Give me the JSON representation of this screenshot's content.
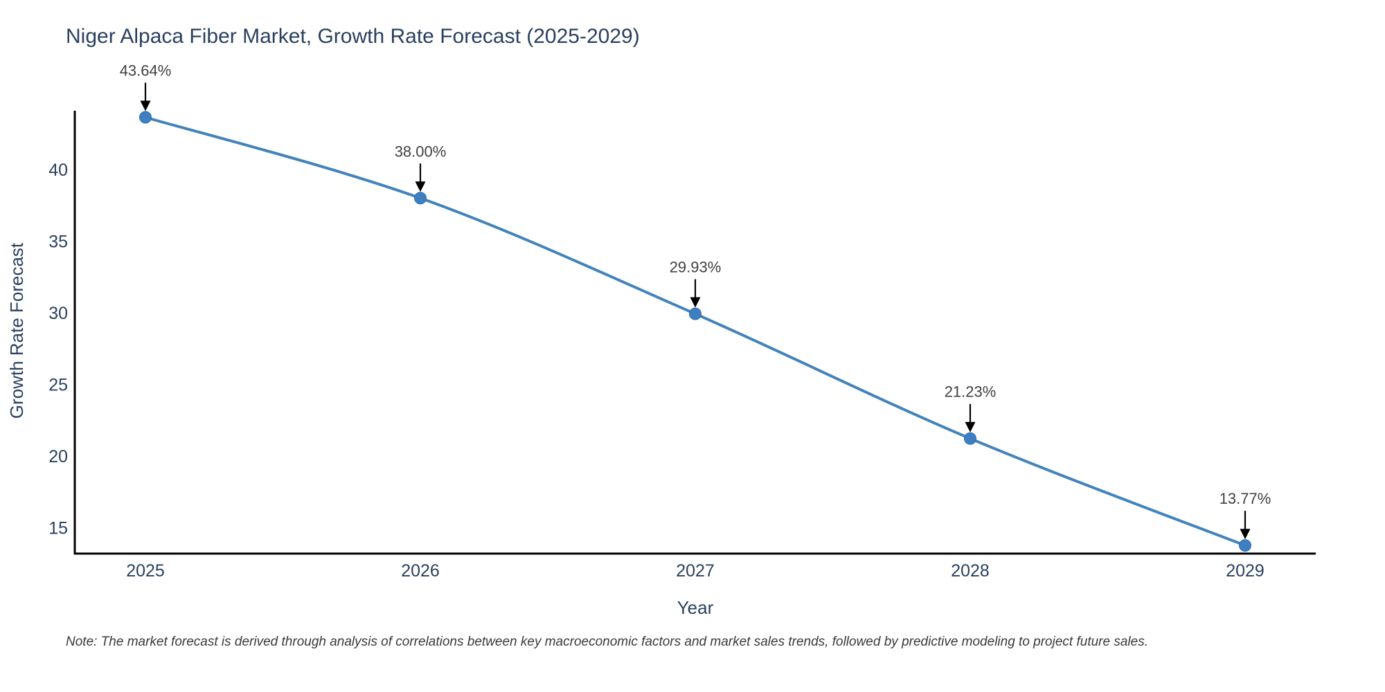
{
  "note": "Note: The market forecast is derived through analysis of correlations between key macroeconomic factors and market sales trends, followed by predictive modeling to project future sales.",
  "chart_data": {
    "type": "line",
    "title": "Niger Alpaca Fiber Market, Growth Rate Forecast (2025-2029)",
    "xlabel": "Year",
    "ylabel": "Growth Rate Forecast",
    "x": [
      "2025",
      "2026",
      "2027",
      "2028",
      "2029"
    ],
    "series": [
      {
        "name": "Growth Rate Forecast",
        "values": [
          43.64,
          38.0,
          29.93,
          21.23,
          13.77
        ]
      }
    ],
    "point_labels": [
      "43.64%",
      "38.00%",
      "29.93%",
      "21.23%",
      "13.77%"
    ],
    "yticks": [
      15,
      20,
      25,
      30,
      35,
      40
    ],
    "ylim": [
      13.2,
      44.1
    ],
    "grid": false,
    "legend": "none",
    "line_shape": "spline",
    "colors": {
      "line": "#4383bb",
      "marker": "#3d7fc1",
      "marker_edge": "#2f6da8",
      "axis": "#000000",
      "title_text": "#2a3f5f",
      "tick_text": "#2a3f5f",
      "annotation_text": "#404040",
      "arrow": "#000000",
      "background": "#ffffff"
    }
  }
}
